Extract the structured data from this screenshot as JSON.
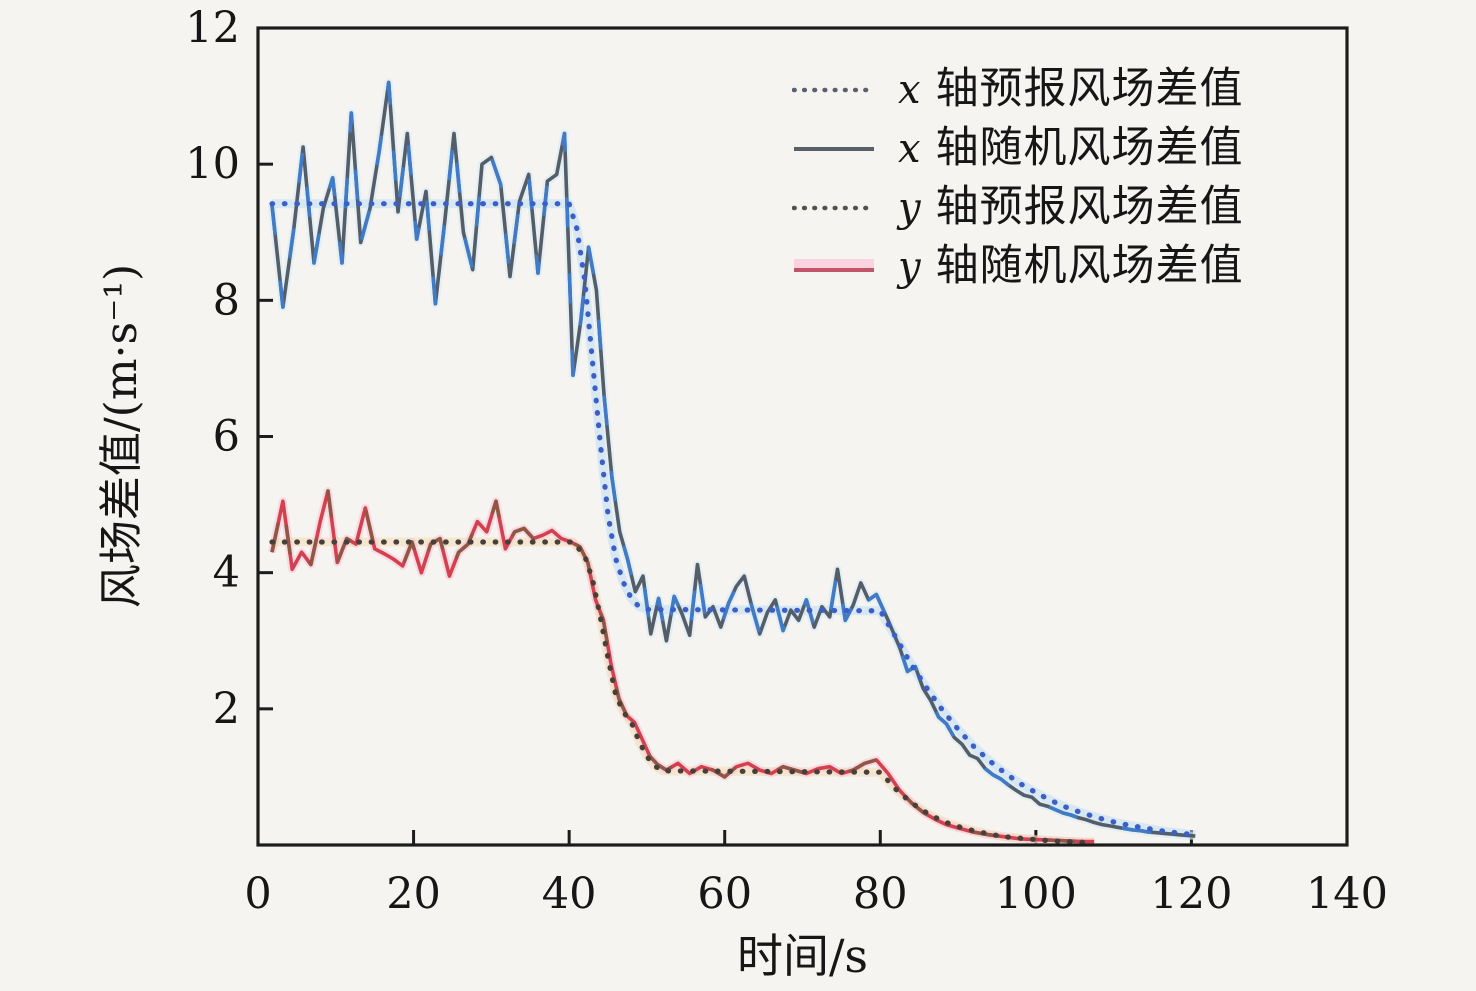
{
  "figure": {
    "background": "#f5f4f1",
    "axis_color": "#1c1c1c"
  },
  "chart_data": {
    "type": "line",
    "title": "",
    "xlabel": "时间/s",
    "ylabel": "风场差值/(m·s⁻¹)",
    "xlim": [
      0,
      140
    ],
    "ylim": [
      0,
      12
    ],
    "grid": false,
    "legend_position": "top-right-inside",
    "xticks": [
      0,
      20,
      40,
      60,
      80,
      100,
      120,
      140
    ],
    "xtick_labels": [
      "0",
      "20",
      "40",
      "60",
      "80",
      "100",
      "120",
      "140"
    ],
    "yticks": [
      2,
      4,
      6,
      8,
      10,
      12
    ],
    "ytick_labels": [
      "2",
      "4",
      "6",
      "8",
      "10",
      "12"
    ],
    "series": [
      {
        "name": "x 轴预报风场差值",
        "style": "dotted",
        "color": "#3d5ec6",
        "halo": "#bcdcf5",
        "points": [
          [
            1.8,
            9.42
          ],
          [
            40,
            9.42
          ],
          [
            41,
            9.05
          ],
          [
            42,
            8.3
          ],
          [
            43,
            7.1
          ],
          [
            44,
            5.9
          ],
          [
            45,
            4.85
          ],
          [
            46,
            4.2
          ],
          [
            47,
            3.85
          ],
          [
            48,
            3.62
          ],
          [
            49,
            3.5
          ],
          [
            50,
            3.46
          ],
          [
            80,
            3.44
          ],
          [
            82,
            3.05
          ],
          [
            84,
            2.65
          ],
          [
            86,
            2.3
          ],
          [
            88,
            1.98
          ],
          [
            90,
            1.7
          ],
          [
            92,
            1.45
          ],
          [
            94,
            1.24
          ],
          [
            96,
            1.06
          ],
          [
            98,
            0.9
          ],
          [
            100,
            0.77
          ],
          [
            102,
            0.65
          ],
          [
            104,
            0.55
          ],
          [
            106,
            0.47
          ],
          [
            108,
            0.4
          ],
          [
            110,
            0.34
          ],
          [
            112,
            0.29
          ],
          [
            114,
            0.25
          ],
          [
            116,
            0.21
          ],
          [
            118,
            0.18
          ],
          [
            120.5,
            0.15
          ]
        ]
      },
      {
        "name": "x 轴随机风场差值",
        "style": "solid",
        "color": "#545d68",
        "overlay": "#3f7ed2",
        "halo": "#d2e9f3",
        "points": [
          [
            1.8,
            9.4
          ],
          [
            3.2,
            7.9
          ],
          [
            4.6,
            9.05
          ],
          [
            5.8,
            10.25
          ],
          [
            7.2,
            8.55
          ],
          [
            8.4,
            9.35
          ],
          [
            9.6,
            9.8
          ],
          [
            10.8,
            8.55
          ],
          [
            12,
            10.75
          ],
          [
            13.2,
            8.85
          ],
          [
            14.4,
            9.35
          ],
          [
            15.6,
            10.2
          ],
          [
            16.8,
            11.2
          ],
          [
            18,
            9.3
          ],
          [
            19.2,
            10.45
          ],
          [
            20.4,
            8.9
          ],
          [
            21.6,
            9.6
          ],
          [
            22.8,
            7.95
          ],
          [
            24,
            9.15
          ],
          [
            25.2,
            10.45
          ],
          [
            26.4,
            9
          ],
          [
            27.6,
            8.45
          ],
          [
            28.8,
            10
          ],
          [
            30,
            10.1
          ],
          [
            31.2,
            9.7
          ],
          [
            32.4,
            8.35
          ],
          [
            33.6,
            9.45
          ],
          [
            34.8,
            9.85
          ],
          [
            36,
            8.4
          ],
          [
            37.2,
            9.75
          ],
          [
            38.4,
            9.85
          ],
          [
            39.4,
            10.45
          ],
          [
            40.5,
            6.9
          ],
          [
            41.5,
            7.7
          ],
          [
            42.5,
            8.78
          ],
          [
            43.5,
            8.15
          ],
          [
            44.5,
            6.6
          ],
          [
            45.5,
            5.4
          ],
          [
            46.5,
            4.6
          ],
          [
            47.5,
            4.2
          ],
          [
            48.5,
            3.72
          ],
          [
            49.5,
            3.95
          ],
          [
            50.5,
            3.1
          ],
          [
            51.5,
            3.62
          ],
          [
            52.5,
            3
          ],
          [
            53.5,
            3.65
          ],
          [
            54.5,
            3.4
          ],
          [
            55.5,
            3.08
          ],
          [
            56.5,
            4.12
          ],
          [
            57.5,
            3.35
          ],
          [
            58.5,
            3.5
          ],
          [
            59.5,
            3.2
          ],
          [
            60.5,
            3.55
          ],
          [
            61.5,
            3.8
          ],
          [
            62.5,
            3.95
          ],
          [
            63.5,
            3.5
          ],
          [
            64.5,
            3.1
          ],
          [
            65.5,
            3.42
          ],
          [
            66.5,
            3.6
          ],
          [
            67.5,
            3.15
          ],
          [
            68.5,
            3.45
          ],
          [
            69.5,
            3.3
          ],
          [
            70.5,
            3.6
          ],
          [
            71.5,
            3.2
          ],
          [
            72.5,
            3.5
          ],
          [
            73.5,
            3.35
          ],
          [
            74.5,
            4.05
          ],
          [
            75.5,
            3.3
          ],
          [
            76.5,
            3.52
          ],
          [
            77.5,
            3.85
          ],
          [
            78.5,
            3.6
          ],
          [
            79.5,
            3.68
          ],
          [
            81,
            3.3
          ],
          [
            82.5,
            2.9
          ],
          [
            83.5,
            2.55
          ],
          [
            84.5,
            2.62
          ],
          [
            85.5,
            2.3
          ],
          [
            86.5,
            2.12
          ],
          [
            87.5,
            1.88
          ],
          [
            88.5,
            1.78
          ],
          [
            89.5,
            1.58
          ],
          [
            90.5,
            1.48
          ],
          [
            91.5,
            1.32
          ],
          [
            92.5,
            1.27
          ],
          [
            93.5,
            1.12
          ],
          [
            94.5,
            1.03
          ],
          [
            95.5,
            0.97
          ],
          [
            96.5,
            0.88
          ],
          [
            97.5,
            0.8
          ],
          [
            98.5,
            0.73
          ],
          [
            99.5,
            0.7
          ],
          [
            100.5,
            0.6
          ],
          [
            101.5,
            0.57
          ],
          [
            102.5,
            0.52
          ],
          [
            103.5,
            0.47
          ],
          [
            104.5,
            0.44
          ],
          [
            105.5,
            0.4
          ],
          [
            106.5,
            0.37
          ],
          [
            107.5,
            0.33
          ],
          [
            108.5,
            0.3
          ],
          [
            109.5,
            0.28
          ],
          [
            110.5,
            0.26
          ],
          [
            111.5,
            0.24
          ],
          [
            112.5,
            0.22
          ],
          [
            113.5,
            0.21
          ],
          [
            114.5,
            0.19
          ],
          [
            115.5,
            0.18
          ],
          [
            116.5,
            0.17
          ],
          [
            117.5,
            0.16
          ],
          [
            118.5,
            0.15
          ],
          [
            119.5,
            0.14
          ],
          [
            120.5,
            0.13
          ]
        ]
      },
      {
        "name": "y 轴预报风场差值",
        "style": "dotted",
        "color": "#47403a",
        "halo": "#f4d7ae",
        "points": [
          [
            1.8,
            4.45
          ],
          [
            40.5,
            4.45
          ],
          [
            42,
            4.25
          ],
          [
            43,
            3.9
          ],
          [
            44,
            3.35
          ],
          [
            45,
            2.75
          ],
          [
            46,
            2.2
          ],
          [
            47,
            1.95
          ],
          [
            48,
            1.8
          ],
          [
            49,
            1.52
          ],
          [
            50,
            1.3
          ],
          [
            51,
            1.16
          ],
          [
            52,
            1.09
          ],
          [
            80,
            1.07
          ],
          [
            82,
            0.82
          ],
          [
            84,
            0.62
          ],
          [
            86,
            0.47
          ],
          [
            88,
            0.35
          ],
          [
            90,
            0.27
          ],
          [
            92,
            0.21
          ],
          [
            94,
            0.16
          ],
          [
            96,
            0.12
          ],
          [
            98,
            0.1
          ],
          [
            100,
            0.08
          ],
          [
            102,
            0.06
          ],
          [
            104,
            0.05
          ],
          [
            106,
            0.04
          ],
          [
            107.5,
            0.04
          ]
        ]
      },
      {
        "name": "y 轴随机风场差值",
        "style": "solid",
        "color": "#d5404f",
        "overlay": "#8a5a44",
        "halo": "#f8c3d4",
        "points": [
          [
            1.8,
            4.3
          ],
          [
            3.2,
            5.05
          ],
          [
            4.4,
            4.05
          ],
          [
            5.6,
            4.3
          ],
          [
            6.8,
            4.12
          ],
          [
            8,
            4.75
          ],
          [
            9,
            5.2
          ],
          [
            10.2,
            4.15
          ],
          [
            11.4,
            4.5
          ],
          [
            12.6,
            4.42
          ],
          [
            13.8,
            4.95
          ],
          [
            15,
            4.35
          ],
          [
            16.2,
            4.28
          ],
          [
            17.4,
            4.2
          ],
          [
            18.6,
            4.1
          ],
          [
            19.8,
            4.45
          ],
          [
            21,
            4
          ],
          [
            22.2,
            4.42
          ],
          [
            23.4,
            4.5
          ],
          [
            24.6,
            3.95
          ],
          [
            25.8,
            4.3
          ],
          [
            27,
            4.42
          ],
          [
            28.2,
            4.75
          ],
          [
            29.4,
            4.6
          ],
          [
            30.6,
            5.05
          ],
          [
            31.8,
            4.35
          ],
          [
            33,
            4.6
          ],
          [
            34.2,
            4.65
          ],
          [
            35.4,
            4.5
          ],
          [
            36.6,
            4.55
          ],
          [
            37.8,
            4.62
          ],
          [
            39,
            4.5
          ],
          [
            40.2,
            4.45
          ],
          [
            41.4,
            4.38
          ],
          [
            42.4,
            4.15
          ],
          [
            43.4,
            3.6
          ],
          [
            44.4,
            3.3
          ],
          [
            45.4,
            2.65
          ],
          [
            46.4,
            2.15
          ],
          [
            47.4,
            1.9
          ],
          [
            48.4,
            1.8
          ],
          [
            49.4,
            1.55
          ],
          [
            50.4,
            1.3
          ],
          [
            51.4,
            1.18
          ],
          [
            52.5,
            1.1
          ],
          [
            54,
            1.2
          ],
          [
            55.5,
            1.05
          ],
          [
            57,
            1.15
          ],
          [
            58.5,
            1.1
          ],
          [
            60,
            1
          ],
          [
            61.5,
            1.15
          ],
          [
            63,
            1.2
          ],
          [
            64.5,
            1.1
          ],
          [
            66,
            1.05
          ],
          [
            67.5,
            1.15
          ],
          [
            69,
            1.1
          ],
          [
            70.5,
            1.05
          ],
          [
            72,
            1.12
          ],
          [
            73.5,
            1.15
          ],
          [
            75,
            1.05
          ],
          [
            76.5,
            1.1
          ],
          [
            78,
            1.2
          ],
          [
            79.5,
            1.25
          ],
          [
            81,
            1.05
          ],
          [
            82.5,
            0.8
          ],
          [
            84,
            0.62
          ],
          [
            85.5,
            0.48
          ],
          [
            87,
            0.38
          ],
          [
            88.5,
            0.3
          ],
          [
            90,
            0.25
          ],
          [
            92,
            0.19
          ],
          [
            94,
            0.15
          ],
          [
            96,
            0.12
          ],
          [
            98,
            0.09
          ],
          [
            100,
            0.08
          ],
          [
            102,
            0.07
          ],
          [
            104,
            0.06
          ],
          [
            106,
            0.05
          ],
          [
            107.5,
            0.05
          ]
        ]
      }
    ]
  },
  "legend": {
    "items": [
      {
        "var": "x",
        "rest": "轴预报风场差值",
        "style": "dotted",
        "color": "#59606f",
        "halo": ""
      },
      {
        "var": "x",
        "rest": "轴随机风场差值",
        "style": "solid",
        "color": "#595f66",
        "halo": ""
      },
      {
        "var": "y",
        "rest": "轴预报风场差值",
        "style": "dotted",
        "color": "#56504a",
        "halo": ""
      },
      {
        "var": "y",
        "rest": "轴随机风场差值",
        "style": "solid",
        "color": "#c05468",
        "halo": "#fbd2e0"
      }
    ]
  }
}
